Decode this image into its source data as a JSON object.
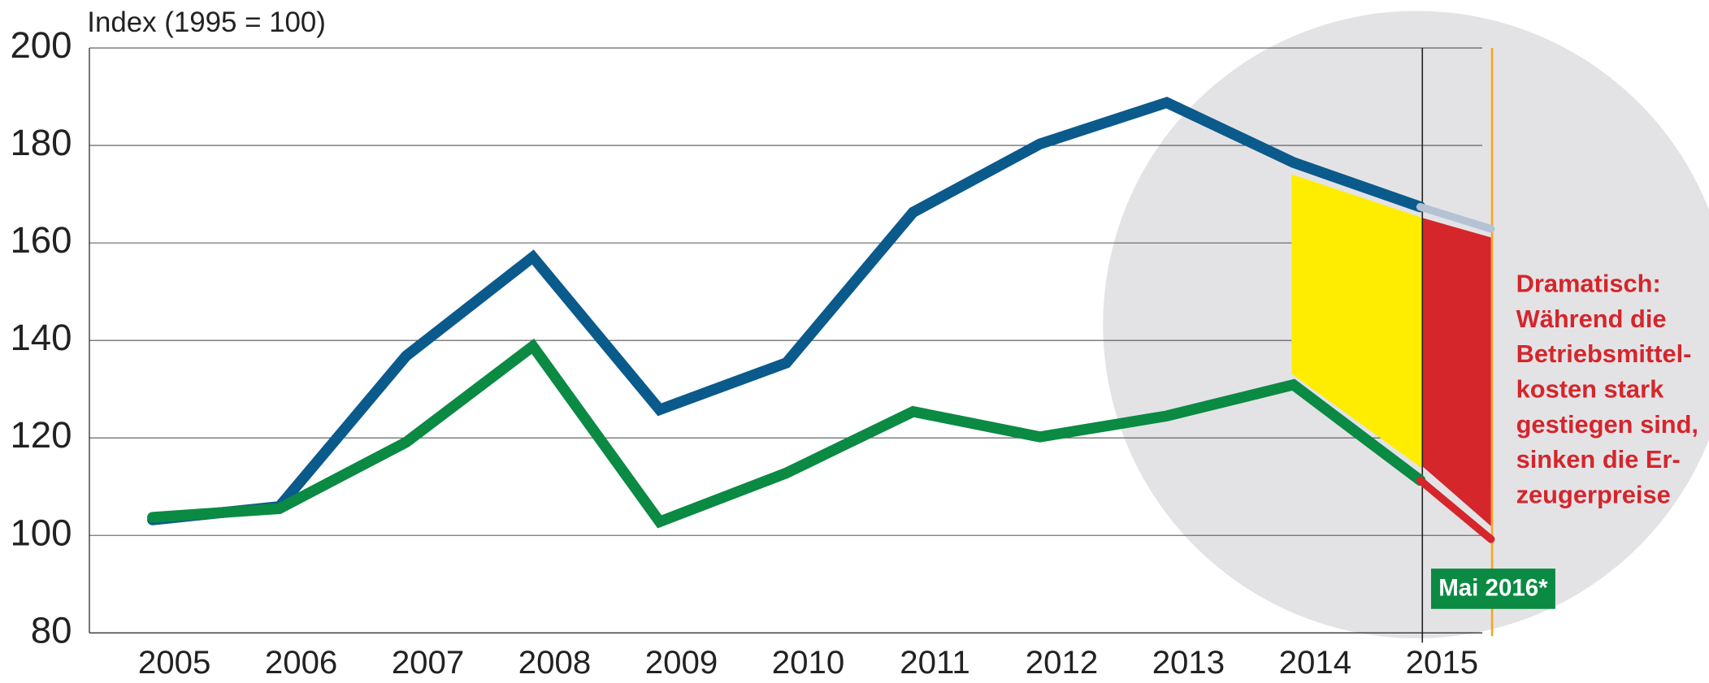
{
  "chart_data": {
    "type": "line",
    "y_label": "Index (1995 = 100)",
    "categories": [
      "2005",
      "2006",
      "2007",
      "2008",
      "2009",
      "2010",
      "2011",
      "2012",
      "2013",
      "2014",
      "2015",
      "Mai 2016*"
    ],
    "series": [
      {
        "color": "#0b5a8c",
        "extension_color": "#b4c2d4",
        "values": [
          103.2,
          105.9,
          136.8,
          157.1,
          125.8,
          135.4,
          166.3,
          180.3,
          188.8,
          176.5,
          167.4,
          162.9
        ]
      },
      {
        "color": "#0a8a43",
        "extension_color": "#d4262b",
        "values": [
          103.7,
          105.5,
          119.1,
          138.8,
          102.8,
          112.8,
          125.4,
          120.2,
          124.5,
          130.9,
          111.3,
          99.2
        ]
      }
    ],
    "ylim": [
      80,
      200
    ],
    "yticks": [
      80,
      100,
      120,
      140,
      160,
      180,
      200
    ],
    "grid": true,
    "annotation": [
      "Dramatisch:",
      "Während die",
      "Betriebsmittel-",
      "kosten stark",
      "gestiegen sind,",
      "sinken die Er-",
      "zeugerpreise"
    ]
  }
}
